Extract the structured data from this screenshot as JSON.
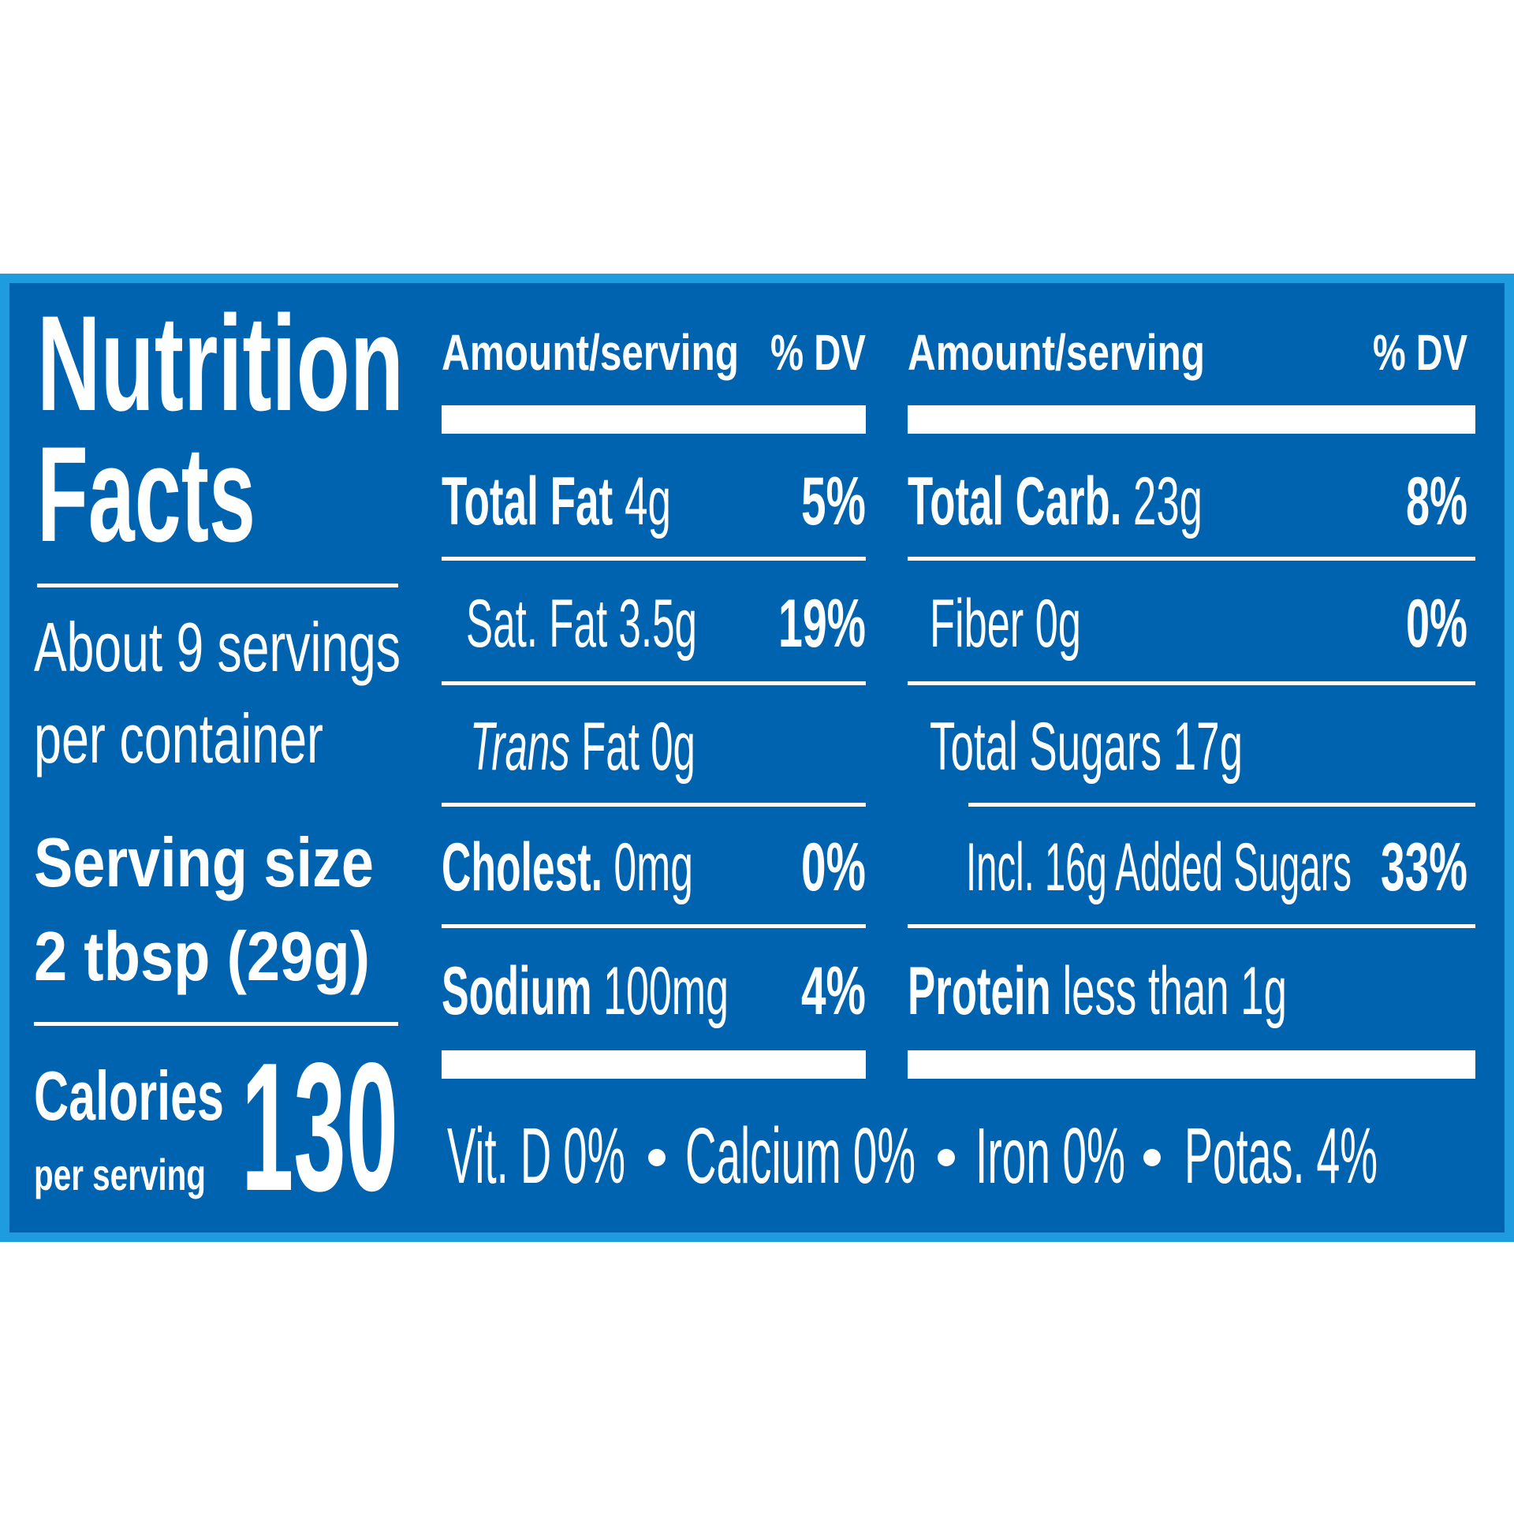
{
  "title": [
    "Nutrition",
    "Facts"
  ],
  "servings": [
    "About 9 servings",
    "per container"
  ],
  "serving_size": {
    "label": "Serving size",
    "value": "2 tbsp (29g)"
  },
  "calories": {
    "label": "Calories",
    "sublabel": "per serving",
    "value": "130"
  },
  "columns": [
    {
      "header": {
        "amount": "Amount/serving",
        "dv": "% DV"
      },
      "rows": [
        {
          "name": "Total Fat",
          "amount": "4g",
          "dv": "5%"
        },
        {
          "name": "Sat. Fat",
          "amount": "3.5g",
          "dv": "19%"
        },
        {
          "italic": "Trans",
          "name": "Fat",
          "amount": "0g"
        },
        {
          "name": "Cholest.",
          "amount": "0mg",
          "dv": "0%"
        },
        {
          "name": "Sodium",
          "amount": "100mg",
          "dv": "4%"
        }
      ]
    },
    {
      "header": {
        "amount": "Amount/serving",
        "dv": "% DV"
      },
      "rows": [
        {
          "name": "Total Carb.",
          "amount": "23g",
          "dv": "8%"
        },
        {
          "name": "Fiber",
          "amount": "0g",
          "dv": "0%"
        },
        {
          "name": "Total Sugars",
          "amount": "17g"
        },
        {
          "name": "Incl. 16g Added Sugars",
          "dv": "33%"
        },
        {
          "name": "Protein",
          "amount": "less than 1g"
        }
      ]
    }
  ],
  "footer": [
    "Vit. D 0%",
    "Calcium 0%",
    "Iron 0%",
    "Potas. 4%"
  ]
}
